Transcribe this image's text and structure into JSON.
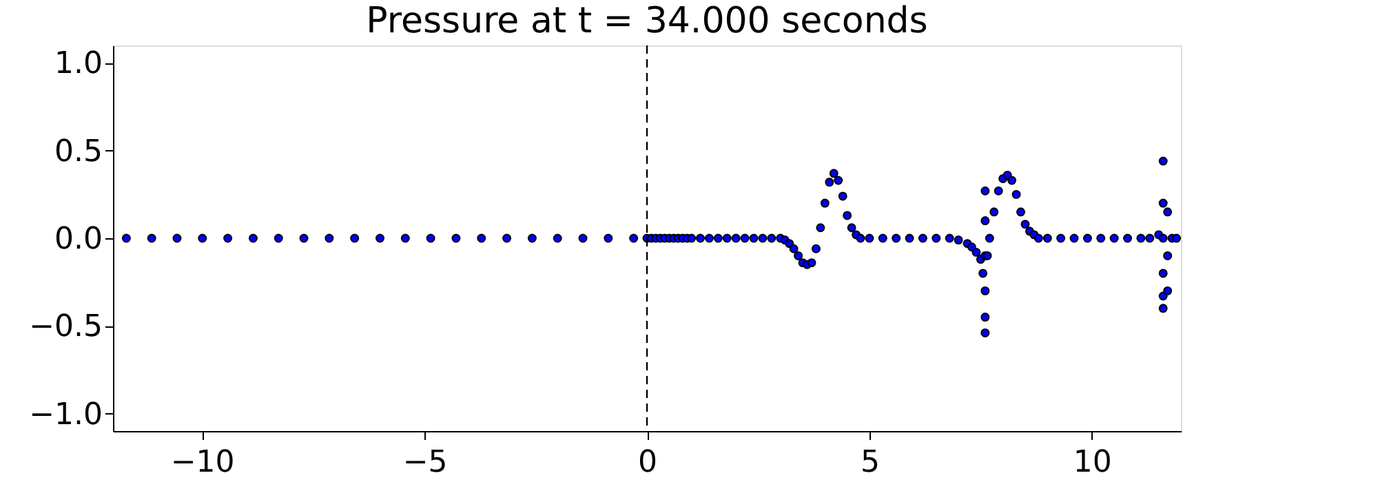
{
  "chart_data": {
    "type": "scatter",
    "title": "Pressure at t = 34.000 seconds",
    "x": [
      -11.7,
      -11.13,
      -10.56,
      -9.99,
      -9.42,
      -8.85,
      -8.28,
      -7.71,
      -7.14,
      -6.57,
      -6.0,
      -5.43,
      -4.86,
      -4.29,
      -3.72,
      -3.15,
      -2.58,
      -2.01,
      -1.44,
      -0.87,
      -0.3,
      0.0,
      0.1,
      0.2,
      0.3,
      0.4,
      0.5,
      0.6,
      0.7,
      0.8,
      0.9,
      1.0,
      1.2,
      1.4,
      1.6,
      1.8,
      2.0,
      2.2,
      2.4,
      2.6,
      2.8,
      3.0,
      3.1,
      3.2,
      3.3,
      3.4,
      3.5,
      3.6,
      3.7,
      3.8,
      3.9,
      4.0,
      4.1,
      4.2,
      4.3,
      4.4,
      4.5,
      4.6,
      4.7,
      4.8,
      5.0,
      5.3,
      5.6,
      5.9,
      6.2,
      6.5,
      6.8,
      7.0,
      7.2,
      7.3,
      7.4,
      7.5,
      7.55,
      7.6,
      7.6,
      7.6,
      7.6,
      7.6,
      7.6,
      7.65,
      7.7,
      7.8,
      7.9,
      8.0,
      8.1,
      8.2,
      8.3,
      8.4,
      8.5,
      8.6,
      8.7,
      8.8,
      9.0,
      9.3,
      9.6,
      9.9,
      10.2,
      10.5,
      10.8,
      11.1,
      11.3,
      11.5,
      11.6,
      11.6,
      11.6,
      11.6,
      11.6,
      11.6,
      11.7,
      11.7,
      11.7,
      11.8,
      11.9
    ],
    "values": [
      0,
      0,
      0,
      0,
      0,
      0,
      0,
      0,
      0,
      0,
      0,
      0,
      0,
      0,
      0,
      0,
      0,
      0,
      0,
      0,
      0,
      0,
      0,
      0,
      0,
      0,
      0,
      0,
      0,
      0,
      0,
      0,
      0,
      0,
      0,
      0,
      0,
      0,
      0,
      0,
      0,
      0,
      -0.01,
      -0.03,
      -0.06,
      -0.1,
      -0.14,
      -0.15,
      -0.14,
      -0.06,
      0.06,
      0.2,
      0.32,
      0.37,
      0.33,
      0.24,
      0.13,
      0.06,
      0.02,
      0.0,
      0,
      0,
      0,
      0,
      0,
      0,
      0,
      -0.01,
      -0.03,
      -0.05,
      -0.08,
      -0.12,
      -0.2,
      0.27,
      0.1,
      -0.1,
      -0.3,
      -0.45,
      -0.54,
      -0.1,
      0.0,
      0.15,
      0.27,
      0.34,
      0.36,
      0.33,
      0.25,
      0.15,
      0.08,
      0.04,
      0.02,
      0.0,
      0,
      0,
      0,
      0,
      0,
      0,
      0,
      0,
      0,
      0.02,
      0.44,
      0.2,
      0.0,
      -0.2,
      -0.33,
      -0.4,
      0.15,
      -0.1,
      -0.3,
      0,
      0
    ],
    "xlim": [
      -12,
      12
    ],
    "ylim": [
      -1.1,
      1.1
    ],
    "xticks": [
      -10,
      -5,
      0,
      5,
      10
    ],
    "yticks": [
      {
        "value": -1,
        "label": "−1.0"
      },
      {
        "value": -0.5,
        "label": "−0.5"
      },
      {
        "value": 0,
        "label": "0.0"
      },
      {
        "value": 0.5,
        "label": "0.5"
      },
      {
        "value": 1,
        "label": "1.0"
      }
    ],
    "color": "#0000ff",
    "marker": "circle",
    "grid": false,
    "ref_lines": [
      {
        "axis": "x",
        "value": 0,
        "color": "#000000",
        "line_style": "dashed"
      }
    ]
  }
}
